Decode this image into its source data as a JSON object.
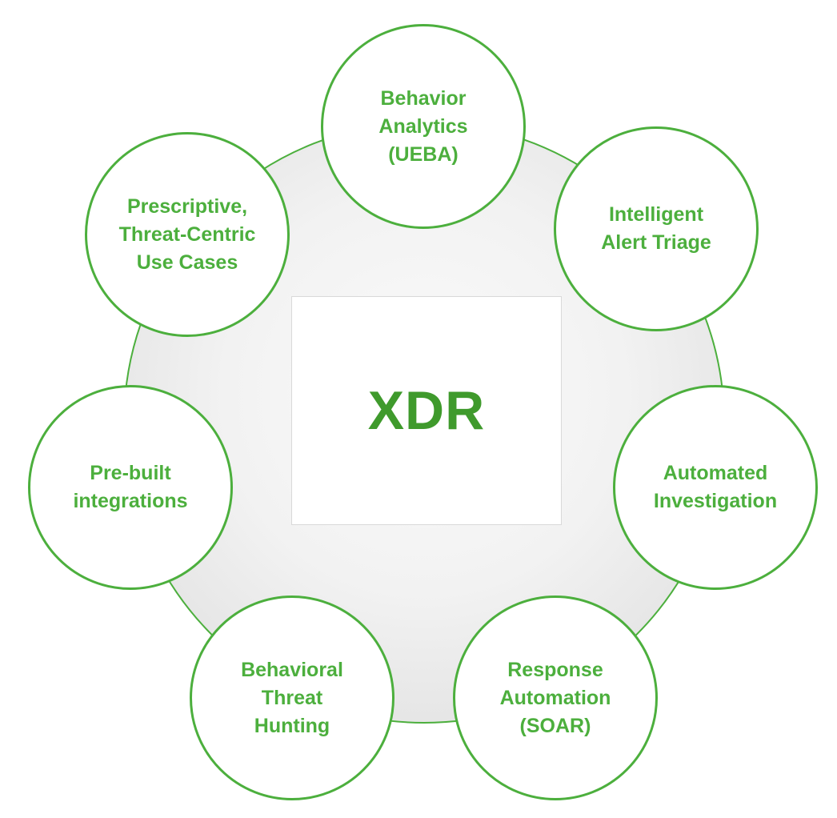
{
  "diagram": {
    "center": {
      "label": "XDR"
    },
    "nodes": [
      {
        "id": "ueba",
        "label": "Behavior\nAnalytics\n(UEBA)"
      },
      {
        "id": "triage",
        "label": "Intelligent\nAlert Triage"
      },
      {
        "id": "auto-inv",
        "label": "Automated\nInvestigation"
      },
      {
        "id": "soar",
        "label": "Response\nAutomation\n(SOAR)"
      },
      {
        "id": "hunting",
        "label": "Behavioral\nThreat\nHunting"
      },
      {
        "id": "prebuilt",
        "label": "Pre-built\nintegrations"
      },
      {
        "id": "prescr",
        "label": "Prescriptive,\nThreat-Centric\nUse Cases"
      }
    ],
    "colors": {
      "accent": "#4caf3d",
      "center_text": "#3f9a2c",
      "hub_fill": "#eeeeee"
    }
  }
}
